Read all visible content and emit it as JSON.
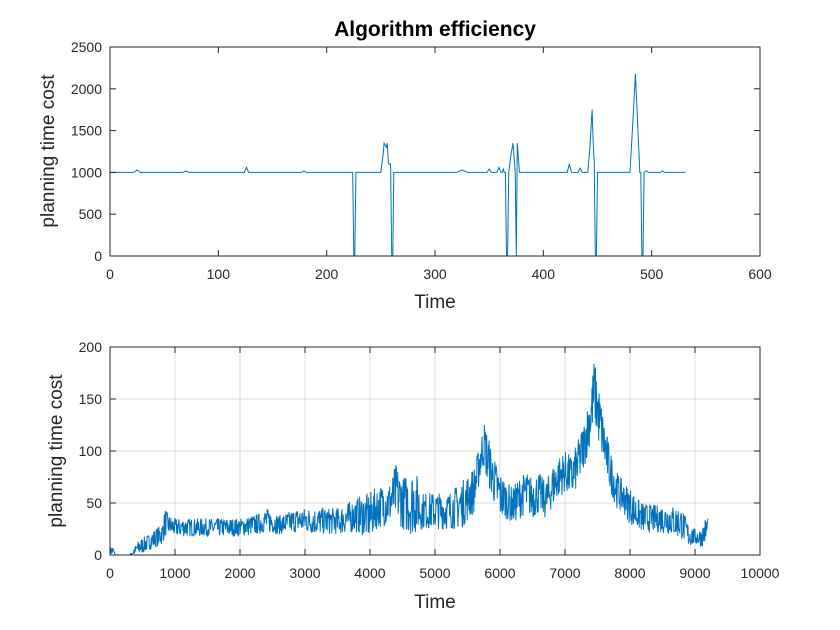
{
  "colors": {
    "series": "#0072bd",
    "axis": "#262626",
    "grid": "#dcdcdc"
  },
  "chart_data": [
    {
      "type": "line",
      "title": "Algorithm efficiency",
      "xlabel": "Time",
      "ylabel": "planning time cost",
      "xlim": [
        0,
        600
      ],
      "ylim": [
        0,
        2500
      ],
      "xticks": [
        "0",
        "100",
        "200",
        "300",
        "400",
        "500",
        "600"
      ],
      "yticks": [
        "0",
        "500",
        "1000",
        "1500",
        "2000",
        "2500"
      ],
      "grid": false,
      "series": [
        {
          "x": [
            0,
            22,
            25,
            28,
            67,
            70,
            73,
            124,
            126,
            128,
            177,
            179,
            181,
            224,
            225,
            226,
            227,
            250,
            252,
            253,
            255,
            256,
            257,
            259,
            260,
            261,
            262,
            263,
            320,
            325,
            330,
            348,
            350,
            352,
            357,
            359,
            361,
            362,
            363,
            364,
            365,
            366,
            367,
            368,
            370,
            372,
            374,
            375,
            376,
            378,
            380,
            390,
            422,
            424,
            426,
            432,
            434,
            436,
            441,
            443,
            445,
            446,
            447,
            448,
            449,
            450,
            470,
            480,
            483,
            485,
            487,
            489,
            490,
            491,
            492,
            493,
            495,
            497,
            500,
            508,
            510,
            512,
            531
          ],
          "y": [
            1000,
            1000,
            1030,
            1000,
            1000,
            1015,
            1000,
            1000,
            1060,
            1000,
            1000,
            1020,
            1000,
            1000,
            0,
            0,
            1000,
            1000,
            1200,
            1350,
            1300,
            1350,
            1100,
            1100,
            0,
            0,
            1000,
            1000,
            1000,
            1030,
            1000,
            1000,
            1040,
            1000,
            1000,
            1060,
            1000,
            1000,
            1040,
            1000,
            1000,
            0,
            0,
            1000,
            1200,
            1350,
            1000,
            0,
            1350,
            1000,
            1000,
            1000,
            1000,
            1100,
            1000,
            1000,
            1050,
            1000,
            1000,
            1300,
            1750,
            1350,
            1100,
            0,
            0,
            1000,
            1000,
            1000,
            1700,
            2180,
            1600,
            1000,
            1000,
            0,
            0,
            1000,
            1020,
            1000,
            1000,
            1000,
            1020,
            1000,
            1000
          ]
        }
      ]
    },
    {
      "type": "line",
      "title": "",
      "xlabel": "Time",
      "ylabel": "planning time cost",
      "xlim": [
        0,
        10000
      ],
      "ylim": [
        0,
        200
      ],
      "xticks": [
        "0",
        "1000",
        "2000",
        "3000",
        "4000",
        "5000",
        "6000",
        "7000",
        "8000",
        "9000",
        "10000"
      ],
      "yticks": [
        "0",
        "50",
        "100",
        "150",
        "200"
      ],
      "grid": true,
      "series": [
        {
          "envelope_x": [
            0,
            50,
            80,
            300,
            450,
            600,
            800,
            850,
            900,
            1000,
            1500,
            2000,
            2300,
            2400,
            2600,
            2900,
            3200,
            3500,
            3800,
            4000,
            4100,
            4300,
            4400,
            4500,
            4600,
            4700,
            4800,
            5000,
            5200,
            5400,
            5600,
            5700,
            5750,
            5800,
            5900,
            6000,
            6100,
            6200,
            6300,
            6400,
            6500,
            6600,
            6700,
            6800,
            6900,
            7000,
            7100,
            7200,
            7300,
            7400,
            7450,
            7500,
            7600,
            7700,
            7800,
            7900,
            8000,
            8100,
            8200,
            8400,
            8600,
            8800,
            8900,
            9000,
            9100,
            9150,
            9200
          ],
          "upper": [
            8,
            8,
            0,
            0,
            15,
            20,
            30,
            45,
            38,
            35,
            35,
            35,
            40,
            45,
            38,
            45,
            45,
            45,
            55,
            60,
            65,
            70,
            88,
            75,
            80,
            82,
            60,
            60,
            60,
            70,
            85,
            110,
            130,
            120,
            95,
            80,
            70,
            65,
            75,
            80,
            75,
            80,
            70,
            85,
            95,
            100,
            95,
            110,
            130,
            160,
            190,
            170,
            130,
            100,
            80,
            70,
            65,
            55,
            50,
            48,
            48,
            45,
            30,
            25,
            25,
            35,
            40
          ],
          "lower": [
            0,
            0,
            0,
            0,
            0,
            5,
            10,
            18,
            20,
            18,
            18,
            18,
            20,
            22,
            20,
            22,
            20,
            20,
            22,
            15,
            25,
            30,
            35,
            25,
            20,
            20,
            25,
            25,
            25,
            25,
            40,
            75,
            85,
            70,
            50,
            35,
            35,
            30,
            35,
            40,
            35,
            40,
            35,
            45,
            55,
            60,
            55,
            65,
            85,
            110,
            130,
            110,
            85,
            60,
            45,
            40,
            30,
            25,
            22,
            22,
            20,
            15,
            8,
            10,
            8,
            10,
            15
          ]
        }
      ]
    }
  ]
}
